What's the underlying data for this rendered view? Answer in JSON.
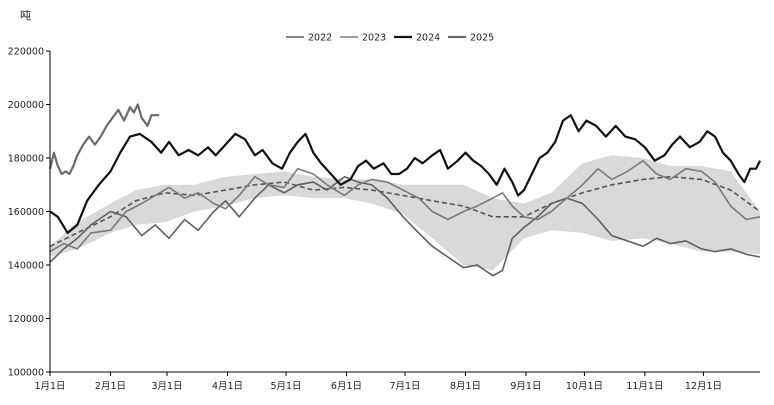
{
  "chart_data": {
    "type": "line",
    "y_unit": "吨",
    "ylim": [
      100000,
      220000
    ],
    "y_ticks": [
      220000,
      200000,
      180000,
      160000,
      140000,
      120000,
      100000
    ],
    "y_tick_labels": [
      "220000",
      "200000",
      "180000",
      "160000",
      "140000",
      "120000",
      "100000"
    ],
    "x_tick_labels": [
      "1月1日",
      "2月1日",
      "3月1日",
      "4月1日",
      "5月1日",
      "6月1日",
      "7月1日",
      "8月1日",
      "9月1日",
      "10月1日",
      "11月1日",
      "12月1日"
    ],
    "x_day_range": [
      1,
      365
    ],
    "grid": false,
    "legend_position": "top-center",
    "band": {
      "fill": "#d9d9d9",
      "points": [
        {
          "day": 1,
          "low": 143000,
          "high": 147000
        },
        {
          "day": 15,
          "low": 146000,
          "high": 156000
        },
        {
          "day": 32,
          "low": 152000,
          "high": 163000
        },
        {
          "day": 45,
          "low": 155000,
          "high": 168000
        },
        {
          "day": 60,
          "low": 156000,
          "high": 170000
        },
        {
          "day": 75,
          "low": 160000,
          "high": 170000
        },
        {
          "day": 91,
          "low": 162000,
          "high": 173000
        },
        {
          "day": 106,
          "low": 165000,
          "high": 174000
        },
        {
          "day": 121,
          "low": 166000,
          "high": 175000
        },
        {
          "day": 136,
          "low": 165000,
          "high": 173000
        },
        {
          "day": 152,
          "low": 165000,
          "high": 172000
        },
        {
          "day": 166,
          "low": 163000,
          "high": 172000
        },
        {
          "day": 182,
          "low": 159000,
          "high": 170000
        },
        {
          "day": 197,
          "low": 150000,
          "high": 170000
        },
        {
          "day": 213,
          "low": 140000,
          "high": 170000
        },
        {
          "day": 228,
          "low": 138000,
          "high": 165000
        },
        {
          "day": 244,
          "low": 150000,
          "high": 163000
        },
        {
          "day": 258,
          "low": 153000,
          "high": 167000
        },
        {
          "day": 274,
          "low": 152000,
          "high": 178000
        },
        {
          "day": 289,
          "low": 149000,
          "high": 181000
        },
        {
          "day": 305,
          "low": 150000,
          "high": 180000
        },
        {
          "day": 319,
          "low": 148000,
          "high": 177000
        },
        {
          "day": 335,
          "low": 145000,
          "high": 177000
        },
        {
          "day": 350,
          "low": 145000,
          "high": 175000
        },
        {
          "day": 365,
          "low": 144000,
          "high": 160000
        }
      ]
    },
    "mean_line": {
      "style": "dashed",
      "color": "#555555",
      "points": [
        [
          1,
          147000
        ],
        [
          15,
          152000
        ],
        [
          32,
          158000
        ],
        [
          45,
          164000
        ],
        [
          60,
          167000
        ],
        [
          75,
          166000
        ],
        [
          91,
          168000
        ],
        [
          106,
          170000
        ],
        [
          121,
          171000
        ],
        [
          136,
          168000
        ],
        [
          152,
          169000
        ],
        [
          166,
          168000
        ],
        [
          182,
          166000
        ],
        [
          197,
          164000
        ],
        [
          213,
          162000
        ],
        [
          228,
          158000
        ],
        [
          244,
          158000
        ],
        [
          258,
          163000
        ],
        [
          274,
          167000
        ],
        [
          289,
          170000
        ],
        [
          305,
          172000
        ],
        [
          319,
          173000
        ],
        [
          335,
          172000
        ],
        [
          350,
          168000
        ],
        [
          365,
          160000
        ]
      ]
    },
    "series": [
      {
        "name": "2022",
        "color": "#5f5f5f",
        "width": 1.6,
        "points": [
          [
            1,
            141000
          ],
          [
            8,
            146000
          ],
          [
            15,
            150000
          ],
          [
            22,
            155000
          ],
          [
            32,
            160000
          ],
          [
            40,
            158000
          ],
          [
            48,
            151000
          ],
          [
            55,
            155000
          ],
          [
            62,
            150000
          ],
          [
            70,
            157000
          ],
          [
            77,
            153000
          ],
          [
            85,
            160000
          ],
          [
            91,
            164000
          ],
          [
            98,
            158000
          ],
          [
            106,
            165000
          ],
          [
            113,
            170000
          ],
          [
            121,
            167000
          ],
          [
            128,
            170000
          ],
          [
            136,
            171000
          ],
          [
            143,
            168000
          ],
          [
            152,
            173000
          ],
          [
            159,
            171000
          ],
          [
            166,
            170000
          ],
          [
            174,
            165000
          ],
          [
            182,
            158000
          ],
          [
            190,
            152000
          ],
          [
            197,
            147000
          ],
          [
            205,
            143000
          ],
          [
            213,
            139000
          ],
          [
            220,
            140000
          ],
          [
            228,
            136000
          ],
          [
            233,
            138000
          ],
          [
            238,
            150000
          ],
          [
            244,
            154000
          ],
          [
            251,
            158000
          ],
          [
            258,
            163000
          ],
          [
            266,
            165000
          ],
          [
            274,
            163000
          ],
          [
            282,
            157000
          ],
          [
            289,
            151000
          ],
          [
            297,
            149000
          ],
          [
            305,
            147000
          ],
          [
            312,
            150000
          ],
          [
            319,
            148000
          ],
          [
            327,
            149000
          ],
          [
            335,
            146000
          ],
          [
            342,
            145000
          ],
          [
            350,
            146000
          ],
          [
            358,
            144000
          ],
          [
            365,
            143000
          ]
        ]
      },
      {
        "name": "2023",
        "color": "#7a7a7a",
        "width": 1.6,
        "points": [
          [
            1,
            145000
          ],
          [
            8,
            148000
          ],
          [
            15,
            146000
          ],
          [
            22,
            152000
          ],
          [
            32,
            153000
          ],
          [
            40,
            160000
          ],
          [
            48,
            163000
          ],
          [
            55,
            166000
          ],
          [
            62,
            169000
          ],
          [
            70,
            165000
          ],
          [
            77,
            167000
          ],
          [
            85,
            163000
          ],
          [
            91,
            161000
          ],
          [
            98,
            166000
          ],
          [
            106,
            173000
          ],
          [
            113,
            170000
          ],
          [
            121,
            169000
          ],
          [
            128,
            176000
          ],
          [
            136,
            174000
          ],
          [
            143,
            170000
          ],
          [
            152,
            166000
          ],
          [
            159,
            170000
          ],
          [
            166,
            172000
          ],
          [
            174,
            171000
          ],
          [
            182,
            168000
          ],
          [
            190,
            165000
          ],
          [
            197,
            160000
          ],
          [
            205,
            157000
          ],
          [
            213,
            160000
          ],
          [
            220,
            162000
          ],
          [
            228,
            165000
          ],
          [
            233,
            167000
          ],
          [
            238,
            162000
          ],
          [
            244,
            158000
          ],
          [
            251,
            157000
          ],
          [
            258,
            160000
          ],
          [
            266,
            165000
          ],
          [
            274,
            170000
          ],
          [
            282,
            176000
          ],
          [
            289,
            172000
          ],
          [
            297,
            175000
          ],
          [
            305,
            179000
          ],
          [
            312,
            174000
          ],
          [
            319,
            172000
          ],
          [
            327,
            176000
          ],
          [
            335,
            175000
          ],
          [
            342,
            171000
          ],
          [
            350,
            162000
          ],
          [
            358,
            157000
          ],
          [
            365,
            158000
          ]
        ]
      },
      {
        "name": "2024",
        "color": "#111111",
        "width": 2.2,
        "points": [
          [
            1,
            160000
          ],
          [
            5,
            158000
          ],
          [
            10,
            152000
          ],
          [
            15,
            155000
          ],
          [
            20,
            164000
          ],
          [
            26,
            170000
          ],
          [
            32,
            175000
          ],
          [
            37,
            182000
          ],
          [
            42,
            188000
          ],
          [
            47,
            189000
          ],
          [
            53,
            186000
          ],
          [
            58,
            182000
          ],
          [
            62,
            186000
          ],
          [
            67,
            181000
          ],
          [
            72,
            183000
          ],
          [
            77,
            181000
          ],
          [
            82,
            184000
          ],
          [
            86,
            181000
          ],
          [
            91,
            185000
          ],
          [
            96,
            189000
          ],
          [
            101,
            187000
          ],
          [
            106,
            181000
          ],
          [
            110,
            183000
          ],
          [
            115,
            178000
          ],
          [
            120,
            176000
          ],
          [
            124,
            182000
          ],
          [
            128,
            186000
          ],
          [
            132,
            189000
          ],
          [
            136,
            182000
          ],
          [
            140,
            178000
          ],
          [
            145,
            174000
          ],
          [
            150,
            170000
          ],
          [
            155,
            172000
          ],
          [
            159,
            177000
          ],
          [
            163,
            179000
          ],
          [
            167,
            176000
          ],
          [
            172,
            178000
          ],
          [
            176,
            174000
          ],
          [
            180,
            174000
          ],
          [
            184,
            176000
          ],
          [
            188,
            180000
          ],
          [
            192,
            178000
          ],
          [
            197,
            181000
          ],
          [
            201,
            183000
          ],
          [
            205,
            176000
          ],
          [
            210,
            179000
          ],
          [
            214,
            182000
          ],
          [
            218,
            179000
          ],
          [
            222,
            177000
          ],
          [
            226,
            174000
          ],
          [
            230,
            170000
          ],
          [
            234,
            176000
          ],
          [
            238,
            171000
          ],
          [
            241,
            166000
          ],
          [
            244,
            168000
          ],
          [
            248,
            174000
          ],
          [
            252,
            180000
          ],
          [
            256,
            182000
          ],
          [
            260,
            186000
          ],
          [
            264,
            194000
          ],
          [
            268,
            196000
          ],
          [
            272,
            190000
          ],
          [
            276,
            194000
          ],
          [
            281,
            192000
          ],
          [
            286,
            188000
          ],
          [
            291,
            192000
          ],
          [
            296,
            188000
          ],
          [
            301,
            187000
          ],
          [
            306,
            184000
          ],
          [
            311,
            179000
          ],
          [
            316,
            181000
          ],
          [
            320,
            185000
          ],
          [
            324,
            188000
          ],
          [
            329,
            184000
          ],
          [
            334,
            186000
          ],
          [
            338,
            190000
          ],
          [
            342,
            188000
          ],
          [
            346,
            182000
          ],
          [
            350,
            179000
          ],
          [
            354,
            174000
          ],
          [
            357,
            171000
          ],
          [
            360,
            176000
          ],
          [
            363,
            176000
          ],
          [
            365,
            179000
          ]
        ]
      },
      {
        "name": "2025",
        "color": "#6a6a6a",
        "width": 2.2,
        "points": [
          [
            1,
            176000
          ],
          [
            3,
            182000
          ],
          [
            5,
            177000
          ],
          [
            7,
            174000
          ],
          [
            9,
            175000
          ],
          [
            11,
            174000
          ],
          [
            13,
            177000
          ],
          [
            15,
            181000
          ],
          [
            18,
            185000
          ],
          [
            21,
            188000
          ],
          [
            24,
            185000
          ],
          [
            27,
            188000
          ],
          [
            30,
            192000
          ],
          [
            33,
            195000
          ],
          [
            36,
            198000
          ],
          [
            39,
            194000
          ],
          [
            42,
            199000
          ],
          [
            44,
            197000
          ],
          [
            46,
            200000
          ],
          [
            48,
            195000
          ],
          [
            51,
            192000
          ],
          [
            53,
            196000
          ],
          [
            55,
            196000
          ],
          [
            57,
            196000
          ]
        ]
      }
    ]
  }
}
